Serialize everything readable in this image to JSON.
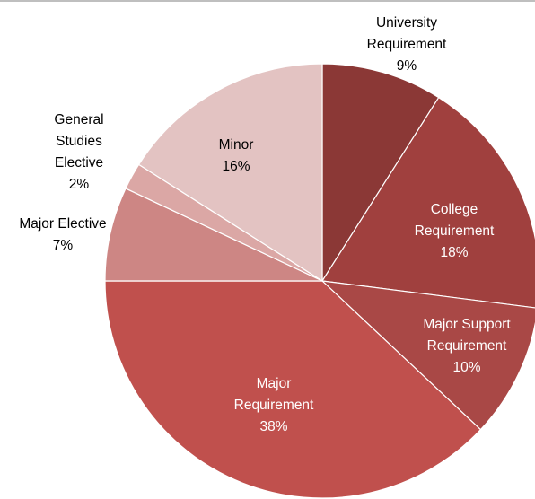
{
  "chart_data": {
    "type": "pie",
    "start_angle_deg": 0,
    "direction": "clockwise",
    "slices": [
      {
        "label_lines": [
          "University",
          "Requirement"
        ],
        "value_text": "9%",
        "value": 9,
        "color": "#8B3836"
      },
      {
        "label_lines": [
          "College",
          "Requirement"
        ],
        "value_text": "18%",
        "value": 18,
        "color": "#A0403E"
      },
      {
        "label_lines": [
          "Major Support",
          "Requirement"
        ],
        "value_text": "10%",
        "value": 10,
        "color": "#A94846"
      },
      {
        "label_lines": [
          "Major",
          "Requirement"
        ],
        "value_text": "38%",
        "value": 38,
        "color": "#C0504D"
      },
      {
        "label_lines": [
          "Major Elective"
        ],
        "value_text": "7%",
        "value": 7,
        "color": "#CD8684"
      },
      {
        "label_lines": [
          "General",
          "Studies",
          "Elective"
        ],
        "value_text": "2%",
        "value": 2,
        "color": "#DBA7A5"
      },
      {
        "label_lines": [
          "Minor"
        ],
        "value_text": "16%",
        "value": 16,
        "color": "#E3C3C2"
      }
    ]
  }
}
